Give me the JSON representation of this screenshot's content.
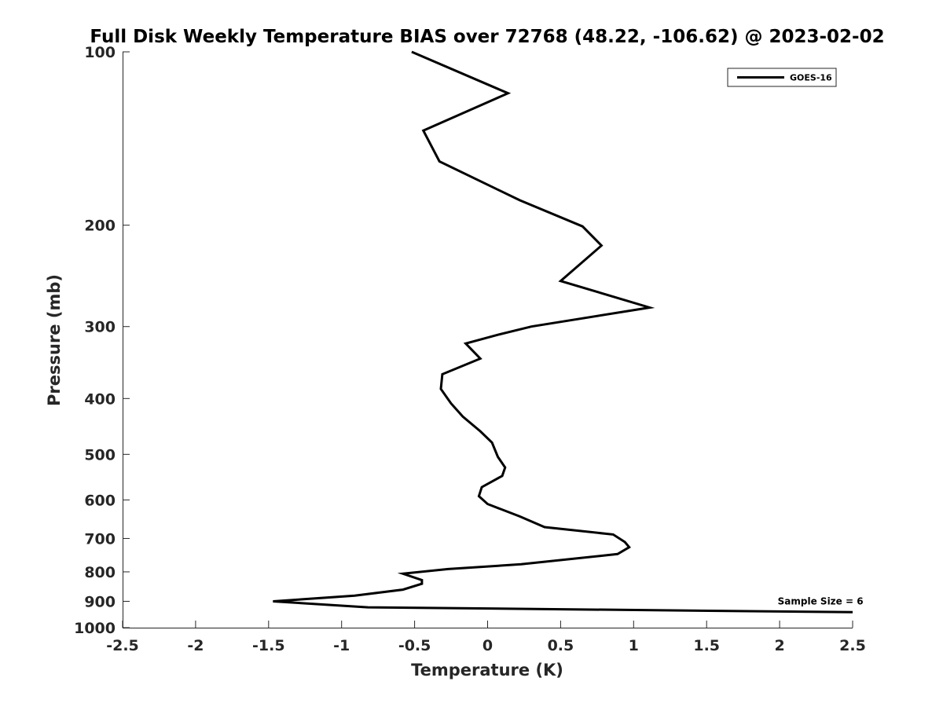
{
  "chart_data": {
    "type": "line",
    "title": "Full Disk Weekly Temperature BIAS over 72768 (48.22, -106.62) @ 2023-02-02",
    "xlabel": "Temperature (K)",
    "ylabel": "Pressure (mb)",
    "xlim": [
      -2.5,
      2.5
    ],
    "ylim": [
      100,
      1000
    ],
    "y_scale": "log",
    "y_reversed": true,
    "x_ticks": [
      -2.5,
      -2,
      -1.5,
      -1,
      -0.5,
      0,
      0.5,
      1,
      1.5,
      2,
      2.5
    ],
    "x_tick_labels": [
      "-2.5",
      "-2",
      "-1.5",
      "-1",
      "-0.5",
      "0",
      "0.5",
      "1",
      "1.5",
      "2",
      "2.5"
    ],
    "y_ticks": [
      100,
      200,
      300,
      400,
      500,
      600,
      700,
      800,
      900,
      1000
    ],
    "y_tick_labels": [
      "100",
      "200",
      "300",
      "400",
      "500",
      "600",
      "700",
      "800",
      "900",
      "1000"
    ],
    "grid": false,
    "legend_position": "top-right",
    "series": [
      {
        "name": "GOES-16",
        "color": "#000000",
        "points": [
          {
            "x": -0.52,
            "p": 100
          },
          {
            "x": 0.14,
            "p": 118
          },
          {
            "x": -0.44,
            "p": 137
          },
          {
            "x": -0.33,
            "p": 155
          },
          {
            "x": 0.22,
            "p": 181
          },
          {
            "x": 0.65,
            "p": 201
          },
          {
            "x": 0.78,
            "p": 217
          },
          {
            "x": 0.5,
            "p": 250
          },
          {
            "x": 1.11,
            "p": 278
          },
          {
            "x": 0.3,
            "p": 300
          },
          {
            "x": 0.07,
            "p": 310
          },
          {
            "x": -0.15,
            "p": 321
          },
          {
            "x": -0.05,
            "p": 341
          },
          {
            "x": -0.31,
            "p": 363
          },
          {
            "x": -0.32,
            "p": 385
          },
          {
            "x": -0.25,
            "p": 408
          },
          {
            "x": -0.17,
            "p": 430
          },
          {
            "x": -0.05,
            "p": 456
          },
          {
            "x": 0.03,
            "p": 477
          },
          {
            "x": 0.07,
            "p": 505
          },
          {
            "x": 0.12,
            "p": 527
          },
          {
            "x": 0.1,
            "p": 545
          },
          {
            "x": -0.04,
            "p": 570
          },
          {
            "x": -0.06,
            "p": 591
          },
          {
            "x": 0.0,
            "p": 610
          },
          {
            "x": 0.22,
            "p": 641
          },
          {
            "x": 0.39,
            "p": 669
          },
          {
            "x": 0.86,
            "p": 689
          },
          {
            "x": 0.94,
            "p": 710
          },
          {
            "x": 0.97,
            "p": 725
          },
          {
            "x": 0.89,
            "p": 745
          },
          {
            "x": 0.23,
            "p": 776
          },
          {
            "x": -0.27,
            "p": 791
          },
          {
            "x": -0.58,
            "p": 806
          },
          {
            "x": -0.45,
            "p": 827
          },
          {
            "x": -0.45,
            "p": 839
          },
          {
            "x": -0.58,
            "p": 859
          },
          {
            "x": -0.91,
            "p": 880
          },
          {
            "x": -1.47,
            "p": 900
          },
          {
            "x": -0.82,
            "p": 922
          },
          {
            "x": 2.5,
            "p": 940
          }
        ]
      }
    ],
    "annotations": [
      {
        "text": "Sample Size = 6",
        "x": 2.28,
        "p": 900
      }
    ]
  }
}
